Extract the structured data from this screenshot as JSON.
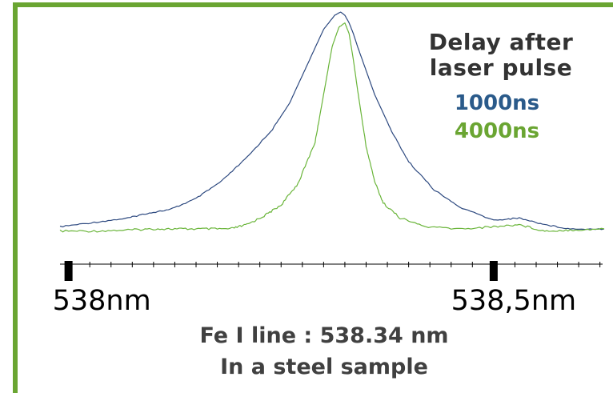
{
  "colors": {
    "frame": "#6aa532",
    "series_1000": "#2e4a80",
    "series_4000": "#6ab53a",
    "legend_1000_text": "#2a5a8a",
    "legend_4000_text": "#6aa532"
  },
  "chart_data": {
    "type": "line",
    "title": "",
    "legend": {
      "title_line1": "Delay after",
      "title_line2": "laser pulse",
      "placement": "top-right"
    },
    "x_axis": {
      "range": [
        537.99,
        538.63
      ],
      "tick_labels": [
        {
          "value": 538.0,
          "label": "538nm"
        },
        {
          "value": 538.5,
          "label": "538,5nm"
        }
      ]
    },
    "y_axis": {
      "visible": false,
      "range": [
        0,
        1
      ]
    },
    "grid": false,
    "series": [
      {
        "name": "1000ns",
        "color": "#2e4a80",
        "points": [
          [
            537.99,
            0.01
          ],
          [
            538.03,
            0.03
          ],
          [
            538.07,
            0.05
          ],
          [
            538.09,
            0.07
          ],
          [
            538.12,
            0.09
          ],
          [
            538.15,
            0.14
          ],
          [
            538.18,
            0.22
          ],
          [
            538.21,
            0.33
          ],
          [
            538.24,
            0.46
          ],
          [
            538.26,
            0.58
          ],
          [
            538.28,
            0.75
          ],
          [
            538.3,
            0.92
          ],
          [
            538.313,
            0.985
          ],
          [
            538.32,
            1.0
          ],
          [
            538.325,
            0.985
          ],
          [
            538.33,
            0.95
          ],
          [
            538.335,
            0.9
          ],
          [
            538.34,
            0.84
          ],
          [
            538.35,
            0.73
          ],
          [
            538.36,
            0.62
          ],
          [
            538.38,
            0.45
          ],
          [
            538.4,
            0.31
          ],
          [
            538.43,
            0.18
          ],
          [
            538.46,
            0.1
          ],
          [
            538.5,
            0.04
          ],
          [
            538.53,
            0.05
          ],
          [
            538.56,
            0.02
          ],
          [
            538.59,
            0.0
          ],
          [
            538.63,
            0.0
          ]
        ]
      },
      {
        "name": "4000ns",
        "color": "#6ab53a",
        "points": [
          [
            537.99,
            -0.01
          ],
          [
            538.03,
            -0.01
          ],
          [
            538.07,
            -0.005
          ],
          [
            538.1,
            0.0
          ],
          [
            538.13,
            0.0
          ],
          [
            538.16,
            0.0
          ],
          [
            538.19,
            0.0
          ],
          [
            538.21,
            0.02
          ],
          [
            538.23,
            0.06
          ],
          [
            538.25,
            0.11
          ],
          [
            538.27,
            0.21
          ],
          [
            538.29,
            0.4
          ],
          [
            538.3,
            0.62
          ],
          [
            538.31,
            0.84
          ],
          [
            538.318,
            0.93
          ],
          [
            538.325,
            0.95
          ],
          [
            538.33,
            0.9
          ],
          [
            538.335,
            0.78
          ],
          [
            538.34,
            0.64
          ],
          [
            538.35,
            0.38
          ],
          [
            538.36,
            0.22
          ],
          [
            538.37,
            0.12
          ],
          [
            538.39,
            0.05
          ],
          [
            538.42,
            0.01
          ],
          [
            538.46,
            0.0
          ],
          [
            538.5,
            0.01
          ],
          [
            538.53,
            0.02
          ],
          [
            538.56,
            -0.01
          ],
          [
            538.59,
            -0.005
          ],
          [
            538.63,
            0.0
          ]
        ]
      }
    ],
    "caption_line1": "Fe I line : 538.34 nm",
    "caption_line2": "In a steel sample"
  }
}
